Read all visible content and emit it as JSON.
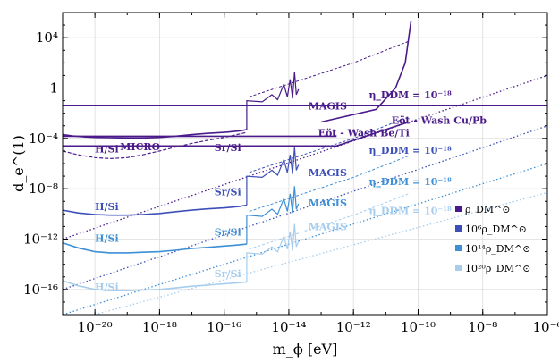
{
  "chart_data": {
    "type": "line",
    "xlabel": "m_ϕ [eV]",
    "ylabel": "d_e^(1)",
    "x_scale": "log",
    "y_scale": "log",
    "xlim": [
      1e-21,
      1e-06
    ],
    "ylim": [
      1e-18,
      1000000.0
    ],
    "grid": true,
    "legend_position": "bottom-right",
    "x_ticks": [
      {
        "value": 1e-20,
        "label": "10⁻²⁰"
      },
      {
        "value": 1e-18,
        "label": "10⁻¹⁸"
      },
      {
        "value": 1e-16,
        "label": "10⁻¹⁶"
      },
      {
        "value": 1e-14,
        "label": "10⁻¹⁴"
      },
      {
        "value": 1e-12,
        "label": "10⁻¹²"
      },
      {
        "value": 1e-10,
        "label": "10⁻¹⁰"
      },
      {
        "value": 1e-08,
        "label": "10⁻⁸"
      },
      {
        "value": 1e-06,
        "label": "10⁻⁶"
      }
    ],
    "y_ticks": [
      {
        "value": 10000.0,
        "label": "10⁴"
      },
      {
        "value": 1,
        "label": "1"
      },
      {
        "value": 0.0001,
        "label": "10⁻⁴"
      },
      {
        "value": 1e-08,
        "label": "10⁻⁸"
      },
      {
        "value": 1e-12,
        "label": "10⁻¹²"
      },
      {
        "value": 1e-16,
        "label": "10⁻¹⁶"
      }
    ],
    "legend": [
      {
        "label": "ρ_DM^⊙",
        "color": "#4a1a8a"
      },
      {
        "label": "10⁶ρ_DM^⊙",
        "color": "#3c4fb8"
      },
      {
        "label": "10¹⁴ρ_DM^⊙",
        "color": "#3d8fd6"
      },
      {
        "label": "10²⁰ρ_DM^⊙",
        "color": "#a6cdee"
      }
    ],
    "series": [
      {
        "name": "ρ_DM^⊙",
        "color": "#4a1a8a",
        "solid": {
          "x": [
            1e-21,
            2e-21,
            5e-21,
            1e-20,
            3e-20,
            1e-19,
            3e-19,
            1e-18,
            3e-18,
            1e-17,
            3e-17,
            1e-16,
            3e-16,
            5e-16
          ],
          "y": [
            0.0002,
            0.00016,
            0.00013,
            0.00012,
            0.000115,
            0.00011,
            0.00011,
            0.00012,
            0.00015,
            0.0002,
            0.00025,
            0.0003,
            0.0004,
            0.0005
          ]
        },
        "dashed": {
          "x": [
            1e-21,
            3e-21,
            1e-20,
            3e-20,
            1e-19,
            3e-19,
            1e-18,
            3e-18,
            1e-17,
            3e-17,
            1e-16,
            5e-16
          ],
          "y": [
            1e-05,
            5e-06,
            3e-06,
            2.5e-06,
            3e-06,
            5e-06,
            1e-05,
            2e-05,
            4e-05,
            7e-05,
            0.00012,
            0.0003
          ]
        },
        "dotted": {
          "x": [
            1e-21,
            1e-06
          ],
          "y": [
            1e-12,
            10
          ]
        },
        "dotted_label": "η_DDM = 10⁻¹⁸"
      },
      {
        "name": "10⁶ρ_DM^⊙",
        "color": "#3c4fb8",
        "solid": {
          "x": [
            1e-21,
            3e-21,
            1e-20,
            3e-20,
            1e-19,
            3e-19,
            1e-18,
            3e-18,
            1e-17,
            3e-17,
            1e-16,
            3e-16,
            5e-16
          ],
          "y": [
            2e-10,
            1.2e-10,
            9e-11,
            8e-11,
            8e-11,
            9e-11,
            1.1e-10,
            1.5e-10,
            2e-10,
            2.5e-10,
            3e-10,
            4e-10,
            5e-10
          ]
        },
        "dotted": {
          "x": [
            1e-21,
            1e-06
          ],
          "y": [
            1e-16,
            0.001
          ]
        },
        "dotted_label": "η_DDM = 10⁻¹⁸"
      },
      {
        "name": "10¹⁴ρ_DM^⊙",
        "color": "#3d8fd6",
        "solid": {
          "x": [
            1e-21,
            3e-21,
            1e-20,
            3e-20,
            1e-19,
            3e-19,
            1e-18,
            3e-18,
            1e-17,
            3e-17,
            1e-16,
            3e-16,
            5e-16
          ],
          "y": [
            5e-13,
            2e-13,
            1e-13,
            8e-14,
            8e-14,
            9e-14,
            1e-13,
            1.3e-13,
            1.8e-13,
            2.2e-13,
            2.8e-13,
            3.5e-13,
            4e-13
          ]
        },
        "dotted": {
          "x": [
            1e-21,
            1e-06
          ],
          "y": [
            1e-18,
            1e-06
          ]
        },
        "dotted_label": "η_DDM = 10⁻¹⁸"
      },
      {
        "name": "10²⁰ρ_DM^⊙",
        "color": "#a6cdee",
        "solid": {
          "x": [
            1e-21,
            3e-21,
            1e-20,
            3e-20,
            1e-19,
            3e-19,
            1e-18,
            3e-18,
            1e-17,
            3e-17,
            1e-16,
            3e-16,
            5e-16
          ],
          "y": [
            5e-16,
            2e-16,
            1e-16,
            8e-17,
            8e-17,
            9e-17,
            1e-16,
            1.3e-16,
            1.8e-16,
            2.2e-16,
            2.8e-16,
            3.5e-16,
            4e-16
          ]
        },
        "dotted": {
          "x": [
            1e-20,
            1e-06
          ],
          "y": [
            1e-18,
            5e-09
          ]
        },
        "dotted_label": "η_DDM = 10⁻¹⁸"
      }
    ],
    "eot_wash": [
      {
        "label": "Eöt - Wash Be/Ti",
        "x": [
          1e-21,
          3e-13
        ],
        "y": [
          0.00015,
          0.00015
        ]
      },
      {
        "label": "Eöt - Wash Cu/Pb",
        "x": [
          1e-21,
          3e-13,
          5e-11
        ],
        "y": [
          2.5e-05,
          2.5e-05,
          0.002
        ]
      }
    ],
    "micro_line": {
      "x": [
        1e-21,
        1e-06
      ],
      "y": [
        0.04,
        0.04
      ]
    },
    "steep_curve": {
      "x": [
        1e-13,
        5e-12,
        2e-11,
        4e-11,
        6e-11
      ],
      "y": [
        0.002,
        0.02,
        1,
        100,
        200000.0
      ]
    },
    "annotations": [
      {
        "text": "H/Si",
        "x": 1e-20,
        "y": 8e-06,
        "color": "#4a1a8a"
      },
      {
        "text": "MICRO",
        "x": 6e-20,
        "y": 1.2e-05,
        "color": "#4a1a8a"
      },
      {
        "text": "Sr/Si",
        "x": 5e-17,
        "y": 1e-05,
        "color": "#4a1a8a"
      },
      {
        "text": "MAGIS",
        "x": 4e-14,
        "y": 0.02,
        "color": "#4a1a8a"
      },
      {
        "text": "Eöt - Wash Be/Ti",
        "x": 8e-14,
        "y": 0.00015,
        "color": "#4a1a8a"
      },
      {
        "text": "Eöt - Wash Cu/Pb",
        "x": 1.5e-11,
        "y": 0.0015,
        "color": "#4a1a8a"
      },
      {
        "text": "η_DDM = 10⁻¹⁸",
        "x": 3e-12,
        "y": 0.15,
        "color": "#4a1a8a"
      },
      {
        "text": "H/Si",
        "x": 1e-20,
        "y": 2e-10,
        "color": "#3c4fb8"
      },
      {
        "text": "Sr/Si",
        "x": 5e-17,
        "y": 3e-09,
        "color": "#3c4fb8"
      },
      {
        "text": "MAGIS",
        "x": 4e-14,
        "y": 1e-07,
        "color": "#3c4fb8"
      },
      {
        "text": "η_DDM = 10⁻¹⁸",
        "x": 3e-12,
        "y": 6e-06,
        "color": "#3c4fb8"
      },
      {
        "text": "H/Si",
        "x": 1e-20,
        "y": 6e-13,
        "color": "#3d8fd6"
      },
      {
        "text": "Sr/Si",
        "x": 5e-17,
        "y": 2e-12,
        "color": "#3d8fd6"
      },
      {
        "text": "MAGIS",
        "x": 4e-14,
        "y": 4e-10,
        "color": "#3d8fd6"
      },
      {
        "text": "η_DDM = 10⁻¹⁸",
        "x": 3e-12,
        "y": 2e-08,
        "color": "#3d8fd6"
      },
      {
        "text": "H/Si",
        "x": 1e-20,
        "y": 8e-17,
        "color": "#a6cdee"
      },
      {
        "text": "Sr/Si",
        "x": 5e-17,
        "y": 1e-15,
        "color": "#a6cdee"
      },
      {
        "text": "MAGIS",
        "x": 4e-14,
        "y": 5e-12,
        "color": "#a6cdee"
      },
      {
        "text": "η_DDM = 10⁻¹⁸",
        "x": 3e-12,
        "y": 1e-10,
        "color": "#a6cdee"
      }
    ]
  }
}
